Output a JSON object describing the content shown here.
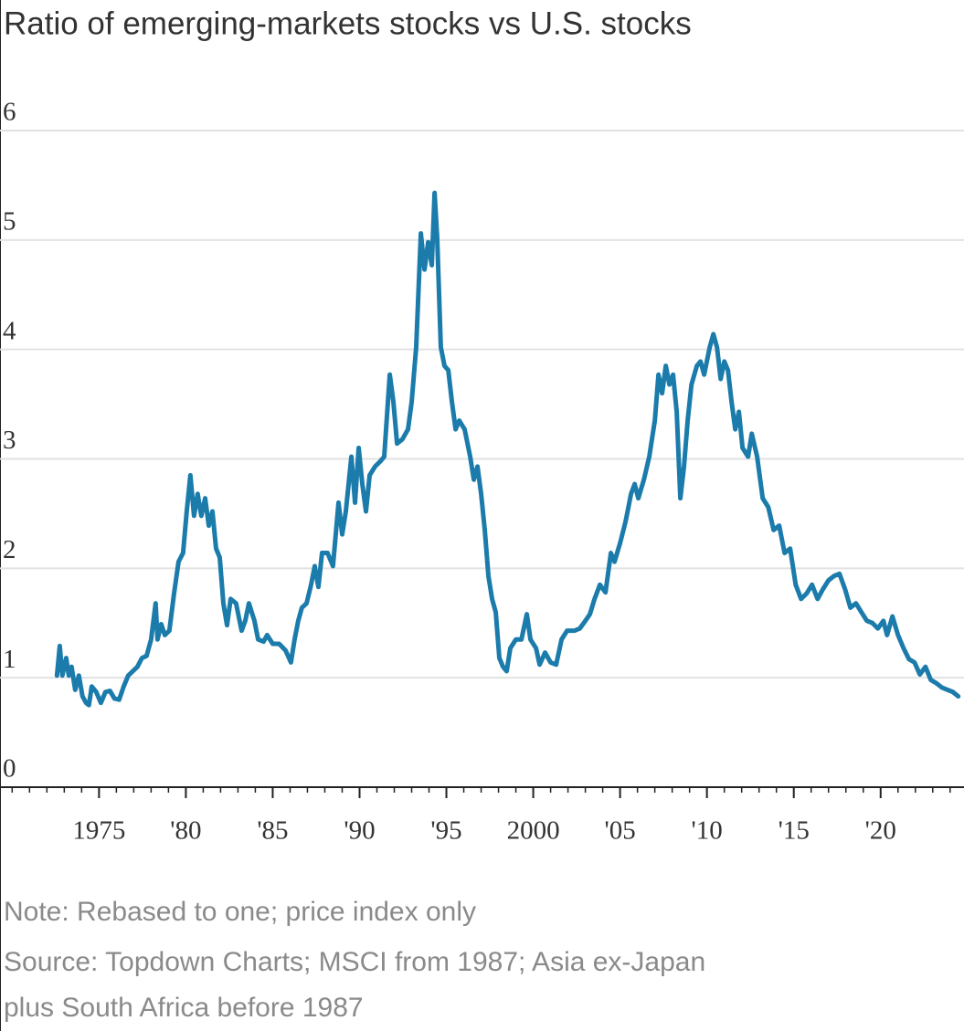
{
  "chart_data": {
    "type": "line",
    "title": "Ratio of emerging-markets stocks vs U.S. stocks",
    "note": "Note: Rebased to one; price index only",
    "source": [
      "Source: Topdown Charts; MSCI from 1987; Asia ex-Japan",
      "plus South Africa before 1987"
    ],
    "xlim": [
      1969.3,
      2024.8
    ],
    "xticks": [
      1975,
      {
        "value": 1980,
        "label": "'80"
      },
      {
        "value": 1985,
        "label": "'85"
      },
      {
        "value": 1990,
        "label": "'90"
      },
      {
        "value": 1995,
        "label": "'95"
      },
      2000,
      {
        "value": 2005,
        "label": "'05"
      },
      {
        "value": 2010,
        "label": "'10"
      },
      {
        "value": 2015,
        "label": "'15"
      },
      {
        "value": 2020,
        "label": "'20"
      }
    ],
    "ylim": [
      0,
      6
    ],
    "yticks": [
      0,
      1,
      2,
      3,
      4,
      5,
      6
    ],
    "grid": true,
    "series": [
      {
        "color": "#1b7bab",
        "x": [
          1972.58,
          1972.74,
          1972.89,
          1973.11,
          1973.26,
          1973.42,
          1973.63,
          1973.84,
          1974.05,
          1974.26,
          1974.42,
          1974.58,
          1974.84,
          1975.11,
          1975.37,
          1975.63,
          1975.89,
          1976.16,
          1976.42,
          1976.68,
          1976.95,
          1977.21,
          1977.47,
          1977.74,
          1978.0,
          1978.26,
          1978.37,
          1978.58,
          1978.79,
          1979.05,
          1979.32,
          1979.58,
          1979.84,
          1980.05,
          1980.26,
          1980.47,
          1980.68,
          1980.89,
          1981.11,
          1981.32,
          1981.53,
          1981.74,
          1981.95,
          1982.16,
          1982.37,
          1982.58,
          1982.89,
          1983.21,
          1983.42,
          1983.63,
          1983.95,
          1984.16,
          1984.47,
          1984.68,
          1985.0,
          1985.37,
          1985.74,
          1986.05,
          1986.26,
          1986.47,
          1986.68,
          1986.95,
          1987.21,
          1987.42,
          1987.63,
          1987.84,
          1988.16,
          1988.47,
          1988.79,
          1989.0,
          1989.21,
          1989.53,
          1989.74,
          1989.95,
          1990.16,
          1990.37,
          1990.58,
          1990.89,
          1991.21,
          1991.42,
          1991.74,
          1991.95,
          1992.16,
          1992.47,
          1992.79,
          1993.0,
          1993.26,
          1993.53,
          1993.74,
          1993.95,
          1994.16,
          1994.32,
          1994.47,
          1994.68,
          1994.89,
          1995.11,
          1995.32,
          1995.53,
          1995.74,
          1996.05,
          1996.37,
          1996.58,
          1996.79,
          1997.0,
          1997.21,
          1997.42,
          1997.63,
          1997.84,
          1998.05,
          1998.26,
          1998.47,
          1998.68,
          1999.0,
          1999.32,
          1999.63,
          1999.84,
          2000.16,
          2000.37,
          2000.68,
          2001.0,
          2001.32,
          2001.63,
          2001.95,
          2002.37,
          2002.68,
          2003.0,
          2003.26,
          2003.53,
          2003.84,
          2004.16,
          2004.47,
          2004.68,
          2005.0,
          2005.32,
          2005.63,
          2005.84,
          2006.05,
          2006.37,
          2006.68,
          2007.0,
          2007.21,
          2007.42,
          2007.63,
          2007.84,
          2008.05,
          2008.26,
          2008.47,
          2008.68,
          2008.89,
          2009.11,
          2009.42,
          2009.63,
          2009.84,
          2010.16,
          2010.37,
          2010.58,
          2010.79,
          2011.0,
          2011.21,
          2011.42,
          2011.63,
          2011.84,
          2012.05,
          2012.37,
          2012.58,
          2012.89,
          2013.21,
          2013.53,
          2013.84,
          2014.16,
          2014.47,
          2014.79,
          2015.11,
          2015.42,
          2015.74,
          2016.05,
          2016.37,
          2016.68,
          2017.0,
          2017.32,
          2017.63,
          2017.95,
          2018.26,
          2018.58,
          2018.89,
          2019.21,
          2019.53,
          2019.84,
          2020.16,
          2020.37,
          2020.68,
          2021.0,
          2021.32,
          2021.63,
          2021.95,
          2022.26,
          2022.58,
          2022.89,
          2023.21,
          2023.53,
          2023.84,
          2024.16,
          2024.47
        ],
        "values": [
          1.02,
          1.29,
          1.02,
          1.18,
          1.02,
          1.1,
          0.89,
          1.02,
          0.83,
          0.77,
          0.75,
          0.92,
          0.87,
          0.77,
          0.87,
          0.88,
          0.81,
          0.8,
          0.92,
          1.02,
          1.06,
          1.1,
          1.18,
          1.2,
          1.35,
          1.68,
          1.35,
          1.49,
          1.39,
          1.43,
          1.77,
          2.06,
          2.14,
          2.52,
          2.85,
          2.48,
          2.68,
          2.48,
          2.64,
          2.39,
          2.52,
          2.18,
          2.1,
          1.68,
          1.48,
          1.72,
          1.68,
          1.43,
          1.52,
          1.68,
          1.52,
          1.35,
          1.33,
          1.39,
          1.31,
          1.31,
          1.25,
          1.14,
          1.35,
          1.52,
          1.64,
          1.68,
          1.85,
          2.02,
          1.83,
          2.14,
          2.14,
          2.02,
          2.6,
          2.31,
          2.52,
          3.02,
          2.6,
          3.1,
          2.77,
          2.52,
          2.85,
          2.93,
          2.98,
          3.02,
          3.77,
          3.52,
          3.14,
          3.18,
          3.27,
          3.52,
          4.02,
          5.06,
          4.73,
          4.98,
          4.77,
          5.43,
          5.02,
          4.02,
          3.85,
          3.81,
          3.52,
          3.27,
          3.35,
          3.27,
          3.02,
          2.81,
          2.93,
          2.68,
          2.35,
          1.93,
          1.72,
          1.6,
          1.18,
          1.1,
          1.06,
          1.27,
          1.35,
          1.35,
          1.58,
          1.35,
          1.27,
          1.12,
          1.23,
          1.14,
          1.12,
          1.35,
          1.43,
          1.43,
          1.45,
          1.52,
          1.58,
          1.72,
          1.85,
          1.78,
          2.14,
          2.06,
          2.23,
          2.43,
          2.68,
          2.77,
          2.64,
          2.81,
          3.02,
          3.35,
          3.77,
          3.6,
          3.85,
          3.68,
          3.77,
          3.43,
          2.64,
          2.93,
          3.35,
          3.68,
          3.85,
          3.89,
          3.77,
          4.02,
          4.14,
          4.02,
          3.73,
          3.89,
          3.81,
          3.52,
          3.27,
          3.43,
          3.1,
          3.02,
          3.23,
          3.02,
          2.64,
          2.56,
          2.35,
          2.39,
          2.14,
          2.18,
          1.85,
          1.72,
          1.77,
          1.85,
          1.72,
          1.81,
          1.89,
          1.93,
          1.95,
          1.81,
          1.64,
          1.68,
          1.6,
          1.52,
          1.5,
          1.45,
          1.52,
          1.39,
          1.56,
          1.39,
          1.27,
          1.17,
          1.14,
          1.03,
          1.1,
          0.98,
          0.95,
          0.91,
          0.89,
          0.87,
          0.83
        ]
      }
    ]
  }
}
